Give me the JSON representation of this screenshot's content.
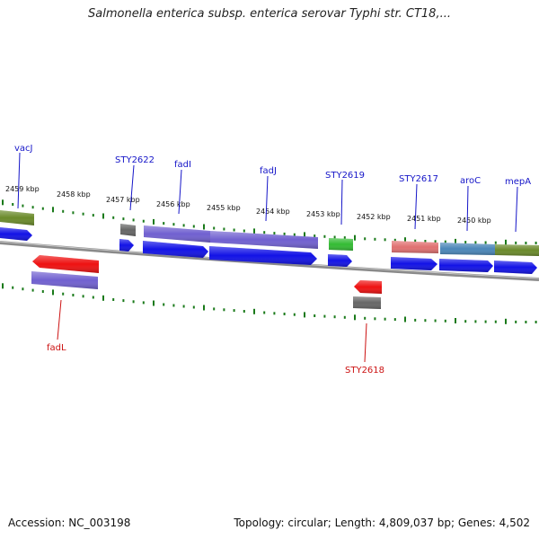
{
  "title": "Salmonella enterica subsp. enterica serovar Typhi str. CT18,...",
  "footer": {
    "accession": "Accession: NC_003198",
    "summary": "Topology: circular; Length: 4,809,037 bp; Genes: 4,502"
  },
  "colors": {
    "backbone": "#8a8a8a",
    "ticks": "#1a7a1a",
    "forward_label": "#1515c8",
    "reverse_label": "#cc1111",
    "cds_forward": "#1212e6",
    "cds_reverse": "#ee1111",
    "cog_purple": "#7060d0",
    "cog_olive": "#6a8a2a",
    "cog_gray": "#666666",
    "cog_green": "#33bb33",
    "cog_salmon": "#e07070",
    "cog_steel": "#4a86b8"
  },
  "kbp_labels": [
    "2459 kbp",
    "2458 kbp",
    "2457 kbp",
    "2456 kbp",
    "2455 kbp",
    "2454 kbp",
    "2453 kbp",
    "2452 kbp",
    "2451 kbp",
    "2450 kbp"
  ],
  "genes_forward": [
    "vacJ",
    "STY2622",
    "fadI",
    "fadJ",
    "STY2619",
    "STY2617",
    "aroC",
    "mepA"
  ],
  "genes_reverse": [
    "fadL",
    "STY2618"
  ]
}
